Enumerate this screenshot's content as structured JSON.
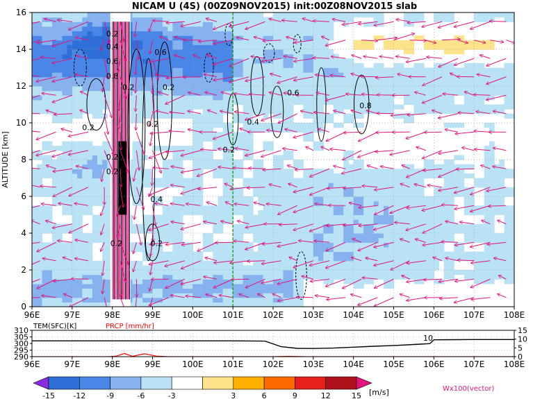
{
  "chart_data": [
    {
      "type": "heatmap",
      "title": "NICAM U (4S) (00Z09NOV2015) init:00Z08NOV2015 slab",
      "ylabel": "ALTITUDE [km]",
      "xlim": [
        96,
        108
      ],
      "ylim": [
        0,
        16
      ],
      "x_ticks": [
        "96E",
        "97E",
        "98E",
        "99E",
        "100E",
        "101E",
        "102E",
        "103E",
        "104E",
        "105E",
        "106E",
        "107E",
        "108E"
      ],
      "y_ticks": [
        "0",
        "2",
        "4",
        "6",
        "8",
        "10",
        "12",
        "14",
        "16"
      ],
      "grid": true,
      "reference_line_x": 101,
      "colorbar": {
        "levels": [
          "-15",
          "-12",
          "-9",
          "-6",
          "-3",
          "3",
          "6",
          "9",
          "12",
          "15"
        ],
        "unit": "[m/s]",
        "colors": [
          "#8a2be2",
          "#2f6fd8",
          "#4a86e8",
          "#86b3f0",
          "#b9e3f5",
          "#ffffff",
          "#ffe38a",
          "#ffb000",
          "#ff6a00",
          "#e8201c",
          "#b0101a",
          "#e0147c"
        ]
      },
      "vector_label": "Wx100(vector)",
      "vector_color": "#e0147c",
      "contour_labels": [
        "0.2",
        "0.4",
        "0.6",
        "0.8",
        "0.2",
        "0.2",
        "0.2",
        "0.2",
        "0.2",
        "0.2",
        "0.2",
        "0.4",
        "0.6",
        "0.8",
        "0.2",
        "0.2",
        "0.4",
        "0.6"
      ]
    },
    {
      "type": "line",
      "xlim": [
        96,
        108
      ],
      "x_ticks": [
        "96E",
        "97E",
        "98E",
        "99E",
        "100E",
        "101E",
        "102E",
        "103E",
        "104E",
        "105E",
        "106E",
        "107E",
        "108E"
      ],
      "series": [
        {
          "name": "TEM(SFC)[K]",
          "color": "#000000",
          "x": [
            96,
            97,
            97.8,
            98.5,
            99,
            100,
            101,
            101.8,
            102.2,
            102.6,
            103,
            103.5,
            104,
            104.5,
            105,
            105.5,
            105.9,
            106,
            107,
            108
          ],
          "y": [
            302,
            302,
            302,
            302,
            302,
            302,
            302,
            301.8,
            297.6,
            296.3,
            296.2,
            296.5,
            297.2,
            297.9,
            298.5,
            299.2,
            299.9,
            302.8,
            303,
            303
          ],
          "ylim": [
            290,
            310
          ],
          "y_ticks": [
            "290",
            "295",
            "300",
            "305",
            "310"
          ]
        },
        {
          "name": "PRCP [mm/hr]",
          "color": "#ff0000",
          "x": [
            96,
            97.9,
            98.1,
            98.3,
            98.5,
            98.8,
            99.1,
            99.4,
            99.8,
            100.2,
            101,
            102,
            102.4,
            102.8,
            103.2,
            108
          ],
          "y": [
            0,
            0,
            0.3,
            1.8,
            0.2,
            1.6,
            0.3,
            0,
            0,
            0,
            0,
            0,
            0.2,
            0,
            0,
            0
          ],
          "ylim": [
            0,
            15
          ],
          "y_ticks": [
            "0",
            "5",
            "10",
            "15"
          ]
        }
      ],
      "annotation": "10"
    }
  ]
}
